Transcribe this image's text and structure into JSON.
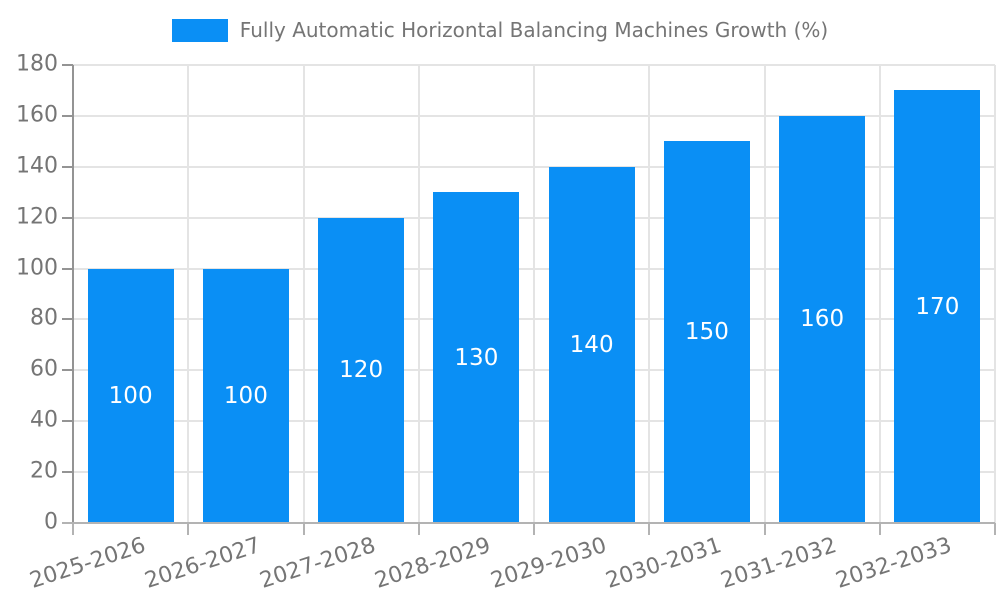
{
  "legend": {
    "label": "Fully Automatic Horizontal Balancing Machines Growth (%)"
  },
  "colors": {
    "bar": "#0a8ff5",
    "grid": "#e4e4e4",
    "y_axis": "#949494",
    "x_axis": "#b3b3b3",
    "tick_text": "#757575",
    "value_text": "#ffffff",
    "background": "#ffffff"
  },
  "chart_data": {
    "type": "bar",
    "title": "Fully Automatic Horizontal Balancing Machines Growth (%)",
    "categories": [
      "2025-2026",
      "2026-2027",
      "2027-2028",
      "2028-2029",
      "2029-2030",
      "2030-2031",
      "2031-2032",
      "2032-2033"
    ],
    "values": [
      100,
      100,
      120,
      130,
      140,
      150,
      160,
      170
    ],
    "bar_labels": [
      "100",
      "100",
      "120",
      "130",
      "140",
      "150",
      "160",
      "170"
    ],
    "xlabel": "",
    "ylabel": "",
    "ylim": [
      0,
      180
    ],
    "yticks": [
      0,
      20,
      40,
      60,
      80,
      100,
      120,
      140,
      160,
      180
    ],
    "grid": "both",
    "legend_position": "top-center",
    "value_label_position": "inside-center",
    "x_label_rotation_deg": -18
  }
}
